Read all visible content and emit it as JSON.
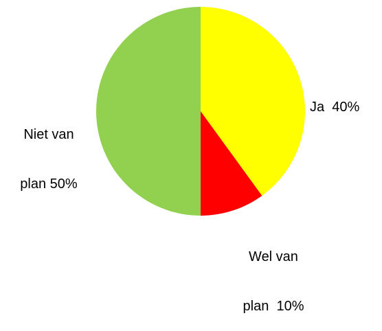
{
  "chart_data": {
    "type": "pie",
    "slices": [
      {
        "label_lines": [
          "Ja  40%"
        ],
        "value": 40,
        "color": "#FFFF00"
      },
      {
        "label_lines": [
          "Wel van",
          "plan  10%"
        ],
        "value": 10,
        "color": "#FF0000"
      },
      {
        "label_lines": [
          "Niet van",
          "plan 50%"
        ],
        "value": 50,
        "color": "#92D050"
      }
    ],
    "start_angle_deg": 0,
    "direction": "clockwise"
  }
}
